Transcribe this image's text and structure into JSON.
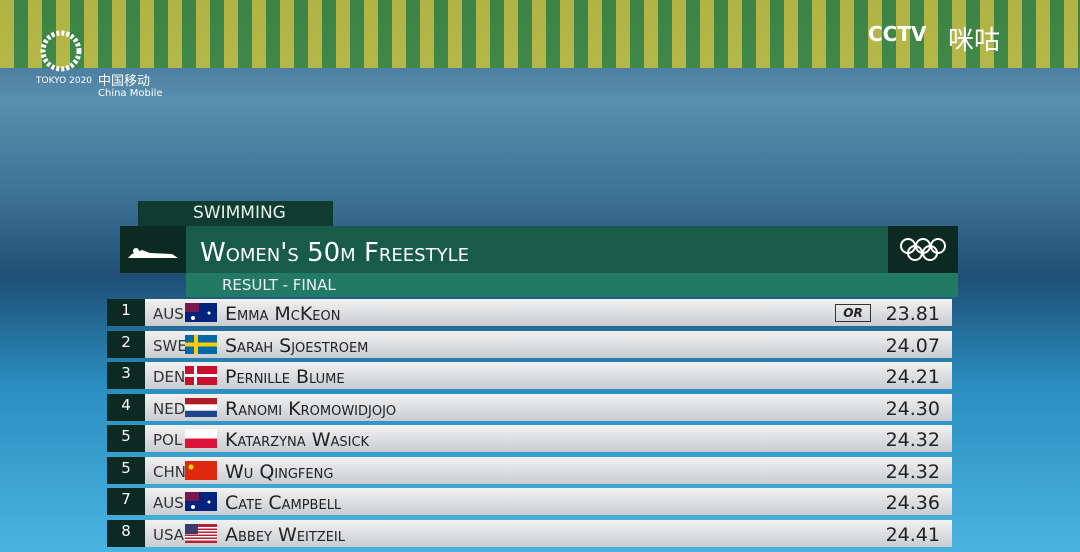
{
  "broadcast": {
    "sponsor_logo": {
      "games": "TOKYO 2020",
      "brand_cn": "中国移动",
      "brand_en": "China Mobile"
    },
    "channel_logo": {
      "cctv": "CCTV",
      "migu": "咪咕"
    }
  },
  "panel": {
    "sport": "SWIMMING",
    "title": "Women's 50m Freestyle",
    "subtitle": "RESULT - FINAL",
    "rows": [
      {
        "rank": "1",
        "country": "AUS",
        "name": "Emma McKeon",
        "record": "OR",
        "time": "23.81"
      },
      {
        "rank": "2",
        "country": "SWE",
        "name": "Sarah Sjoestroem",
        "time": "24.07"
      },
      {
        "rank": "3",
        "country": "DEN",
        "name": "Pernille Blume",
        "time": "24.21"
      },
      {
        "rank": "4",
        "country": "NED",
        "name": "Ranomi Kromowidjojo",
        "time": "24.30"
      },
      {
        "rank": "5",
        "country": "POL",
        "name": "Katarzyna Wasick",
        "time": "24.32"
      },
      {
        "rank": "5",
        "country": "CHN",
        "name": "Wu Qingfeng",
        "time": "24.32"
      },
      {
        "rank": "7",
        "country": "AUS",
        "name": "Cate Campbell",
        "time": "24.36"
      },
      {
        "rank": "8",
        "country": "USA",
        "name": "Abbey Weitzeil",
        "time": "24.41"
      }
    ]
  }
}
